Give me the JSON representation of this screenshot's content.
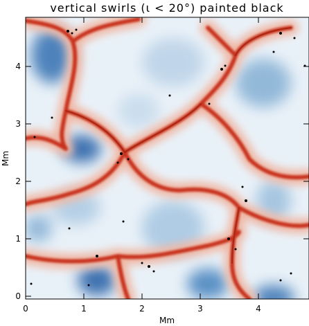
{
  "title": "vertical swirls (ι < 20°) painted black",
  "x_axis": {
    "label": "Mm",
    "ticks": [
      "0",
      "1",
      "2",
      "3",
      "4"
    ],
    "values": [
      0,
      1,
      2,
      3,
      4
    ],
    "range": [
      0,
      4.9
    ]
  },
  "y_axis": {
    "label": "Mm",
    "ticks": [
      "0",
      "1",
      "2",
      "3",
      "4"
    ],
    "values": [
      0,
      1,
      2,
      3,
      4
    ],
    "range": [
      0,
      4.9
    ]
  },
  "colors": {
    "downflow_lanes": "#c8321e",
    "granule_light": "#eef3f8",
    "granule_core": "#2a64a8",
    "swirl_marks": "#000000",
    "frame": "#000000"
  }
}
